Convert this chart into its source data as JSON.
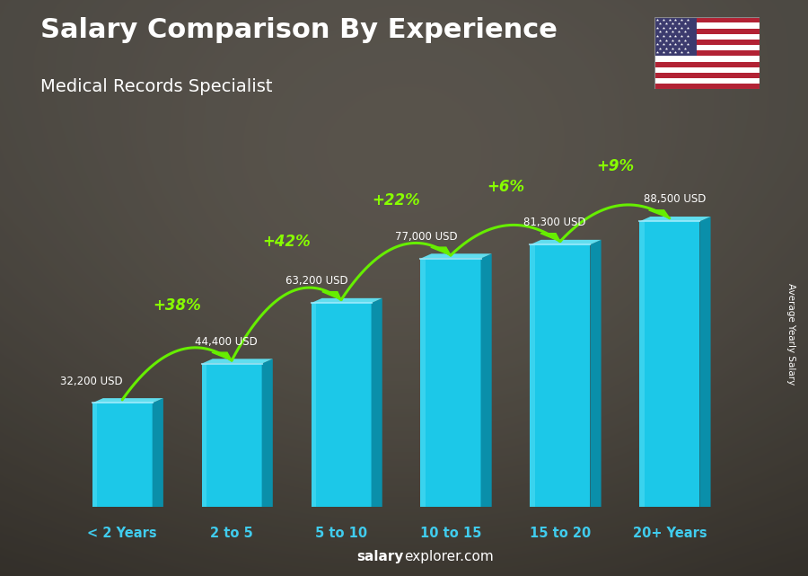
{
  "title": "Salary Comparison By Experience",
  "subtitle": "Medical Records Specialist",
  "categories": [
    "< 2 Years",
    "2 to 5",
    "5 to 10",
    "10 to 15",
    "15 to 20",
    "20+ Years"
  ],
  "values": [
    32200,
    44400,
    63200,
    77000,
    81300,
    88500
  ],
  "labels": [
    "32,200 USD",
    "44,400 USD",
    "63,200 USD",
    "77,000 USD",
    "81,300 USD",
    "88,500 USD"
  ],
  "pct_changes": [
    "+38%",
    "+42%",
    "+22%",
    "+6%",
    "+9%"
  ],
  "face_color": "#1CC8E8",
  "side_color": "#0A8FAA",
  "top_color": "#60DDEE",
  "bg_color": "#5a5a5a",
  "title_color": "#ffffff",
  "label_color": "#ffffff",
  "xticklabel_color": "#40CCEE",
  "pct_color": "#88FF00",
  "arrow_color": "#66EE00",
  "right_label": "Average Yearly Salary",
  "ylim_max": 100000,
  "figsize": [
    9.0,
    6.41
  ],
  "dpi": 100
}
